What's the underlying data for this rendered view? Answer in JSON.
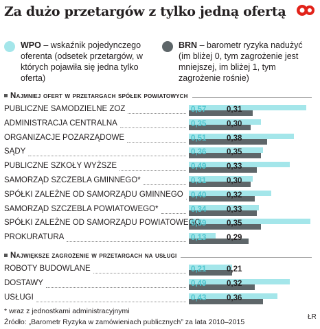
{
  "title": "Za dużo przetargów z tylko jedną ofertą",
  "logo": "GP",
  "legend": {
    "wpo": {
      "code": "WPO",
      "text": " – wskaźnik pojedynczego oferenta (odsetek przetargów, w których pojawiła się jedna tylko oferta)",
      "color": "#a4e6ea"
    },
    "brn": {
      "code": "BRN",
      "text": " – barometr ryzyka nadużyć (im bliżej 0, tym zagrożenie jest mniejszej, im bliżej 1, tym zagrożenie rośnie)",
      "color": "#5e6669"
    }
  },
  "sections": {
    "s1": "Najmniej ofert w przetargach spółek powiatowych",
    "s2": "Największe zagrożenie w przetargach na usługi"
  },
  "chart_data": {
    "type": "bar",
    "series_names": [
      "WPO",
      "BRN"
    ],
    "groups": [
      {
        "title": "Najmniej ofert w przetargach spółek powiatowych",
        "categories": [
          "PUBLICZNE SAMODZIELNE ZOZ",
          "ADMINISTRACJA CENTRALNA",
          "ORGANIZACJE POZARZĄDOWE",
          "SĄDY",
          "PUBLICZNE SZKOŁY WYŻSZE",
          "SAMORZĄD SZCZEBLA GMINNEGO*",
          "SPÓŁKI ZALEŻNE OD SAMORZĄDU GMINNEGO",
          "SAMORZĄD SZCZEBLA POWIATOWEGO*",
          "SPÓŁKI ZALEŻNE OD SAMORZĄDU POWIATOWEGO",
          "PROKURATURA"
        ],
        "wpo": [
          0.57,
          0.35,
          0.51,
          0.36,
          0.49,
          0.31,
          0.4,
          0.34,
          0.59,
          0.13
        ],
        "brn": [
          0.31,
          0.3,
          0.38,
          0.35,
          0.33,
          0.3,
          0.32,
          0.33,
          0.35,
          0.29
        ],
        "wpo_labels": [
          "0,57",
          "0,35",
          "0,51",
          "0,36",
          "0,49",
          "0,31",
          "0,40",
          "0,34",
          "0,59",
          "0,13"
        ],
        "brn_labels": [
          "0,31",
          "0,30",
          "0,38",
          "0,35",
          "0,33",
          "0,30",
          "0,32",
          "0,33",
          "0,35",
          "0,29"
        ]
      },
      {
        "title": "Największe zagrożenie w przetargach na usługi",
        "categories": [
          "ROBOTY BUDOWLANE",
          "DOSTAWY",
          "USŁUGI"
        ],
        "wpo": [
          0.21,
          0.49,
          0.43
        ],
        "brn": [
          0.21,
          0.32,
          0.36
        ],
        "wpo_labels": [
          "0,21",
          "0,49",
          "0,43"
        ],
        "brn_labels": [
          "0,21",
          "0,32",
          "0,36"
        ]
      }
    ],
    "xlim": [
      0,
      0.6
    ]
  },
  "footnote": "* wraz z jednostkami administracyjnymi",
  "source": "Źródło: „Barometr Ryzyka w zamówieniach publicznych” za lata 2010–2015",
  "credit": "ŁR"
}
